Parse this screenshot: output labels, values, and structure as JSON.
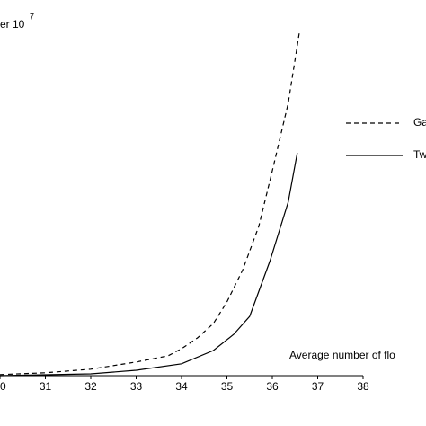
{
  "chart_data": {
    "type": "line",
    "y_label": "er 10",
    "y_label_exponent": "7",
    "x_label": "Average number of flo",
    "xlim": [
      30,
      38
    ],
    "xticks": [
      {
        "value": 30,
        "label": "0"
      },
      31,
      32,
      33,
      34,
      35,
      36,
      37,
      38
    ],
    "ylim": [
      0,
      10
    ],
    "series": [
      {
        "name": "Ga",
        "color": "#000000",
        "dash": true,
        "x": [
          30,
          31,
          32,
          33,
          33.7,
          34,
          34.35,
          34.7,
          35,
          35.35,
          35.7,
          36,
          36.35,
          36.6
        ],
        "values": [
          0.03,
          0.08,
          0.18,
          0.38,
          0.55,
          0.75,
          1.05,
          1.45,
          2.05,
          2.95,
          4.15,
          5.7,
          7.58,
          9.58
        ]
      },
      {
        "name": "Tw",
        "color": "#000000",
        "dash": false,
        "x": [
          30,
          32,
          33,
          34,
          34.7,
          35.15,
          35.5,
          35.95,
          36.35,
          36.55
        ],
        "values": [
          0,
          0.05,
          0.15,
          0.33,
          0.7,
          1.15,
          1.65,
          3.2,
          4.83,
          6.2
        ]
      }
    ]
  }
}
